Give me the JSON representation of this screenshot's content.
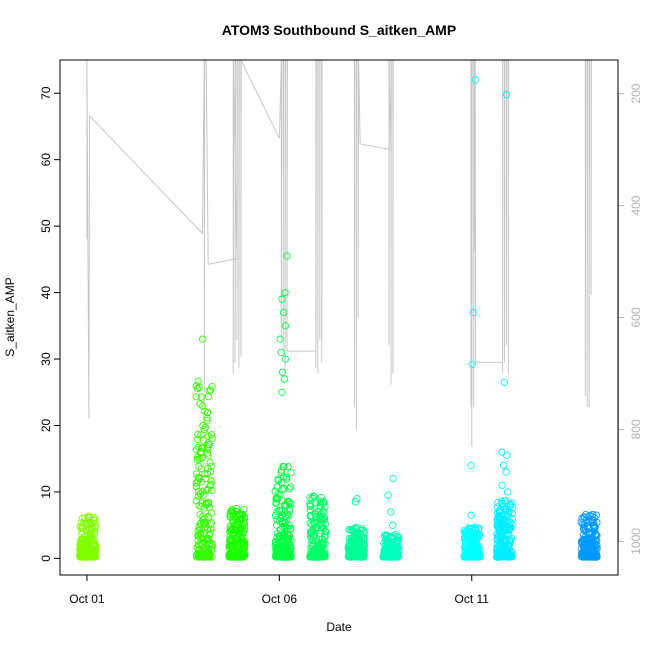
{
  "chart_data": {
    "type": "scatter",
    "title": "ATOM3 Southbound S_aitken_AMP",
    "xlabel": "Date",
    "ylabel": "S_aitken_AMP",
    "x_ticks": [
      {
        "day": 1,
        "label": "Oct 01"
      },
      {
        "day": 6,
        "label": "Oct 06"
      },
      {
        "day": 11,
        "label": "Oct 11"
      }
    ],
    "xlim": [
      0.3,
      14.8
    ],
    "ylim": [
      -2.5,
      75
    ],
    "y_ticks": [
      0,
      10,
      20,
      30,
      40,
      50,
      60,
      70
    ],
    "y2_ticks": [
      200,
      400,
      600,
      800,
      1000
    ],
    "y2lim": [
      1060,
      140
    ],
    "grid": false,
    "marker": "open-circle",
    "clusters": [
      {
        "day": 1.02,
        "color": "#80ff00",
        "max": 6.5,
        "outliers": []
      },
      {
        "day": 4.05,
        "color": "#33ff00",
        "max": 27,
        "outliers": [
          33
        ]
      },
      {
        "day": 4.9,
        "color": "#1aff00",
        "max": 7.5,
        "outliers": []
      },
      {
        "day": 6.1,
        "color": "#00ff40",
        "max": 14,
        "outliers": [
          25,
          27,
          28,
          30,
          31,
          33,
          35,
          37,
          39,
          40,
          45.5
        ]
      },
      {
        "day": 7.0,
        "color": "#00ff66",
        "max": 9.2,
        "outliers": []
      },
      {
        "day": 8.0,
        "color": "#00ff99",
        "max": 4.5,
        "outliers": [
          8.5,
          9
        ]
      },
      {
        "day": 8.9,
        "color": "#00ffc0",
        "max": 3.5,
        "outliers": [
          5,
          7,
          9.5,
          12
        ]
      },
      {
        "day": 11.0,
        "color": "#00ffff",
        "max": 4.5,
        "outliers": [
          6.5,
          14,
          29.2,
          37,
          72
        ]
      },
      {
        "day": 11.85,
        "color": "#00eeff",
        "max": 8.5,
        "outliers": [
          10,
          11,
          13,
          14,
          15.5,
          16,
          26.5,
          69.8
        ]
      },
      {
        "day": 14.05,
        "color": "#0099ff",
        "max": 6.5,
        "outliers": []
      }
    ]
  }
}
